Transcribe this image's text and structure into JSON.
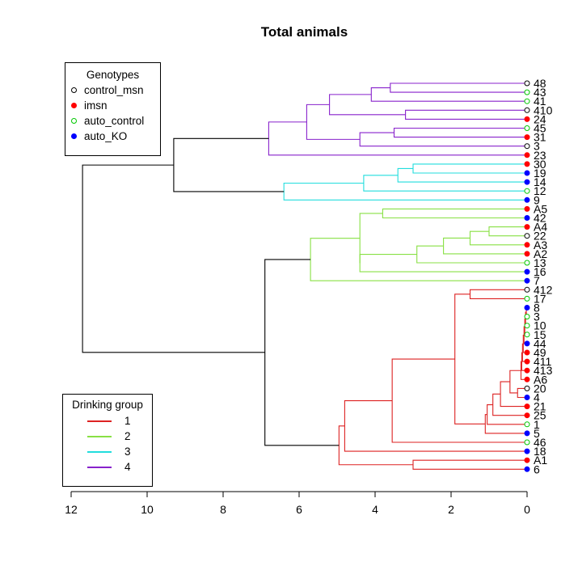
{
  "chart_data": {
    "type": "dendrogram",
    "title": "Total animals",
    "orientation": "horizontal",
    "xlim": [
      12,
      0
    ],
    "xticks": [
      12,
      10,
      8,
      6,
      4,
      2,
      0
    ],
    "xlabel": "",
    "ylabel": "",
    "colors": {
      "control_msn": "#000000",
      "imsn": "#ff0000",
      "auto_control": "#00c800",
      "auto_KO": "#0000ff",
      "group1": "#dd2222",
      "group2": "#88e044",
      "group3": "#22dddd",
      "group4": "#8822cc",
      "trunk": "#000000"
    },
    "leaves": [
      {
        "label": "48",
        "genotype": "control_msn"
      },
      {
        "label": "43",
        "genotype": "auto_control"
      },
      {
        "label": "41",
        "genotype": "auto_control"
      },
      {
        "label": "410",
        "genotype": "control_msn"
      },
      {
        "label": "24",
        "genotype": "imsn"
      },
      {
        "label": "45",
        "genotype": "auto_control"
      },
      {
        "label": "31",
        "genotype": "imsn"
      },
      {
        "label": "3",
        "genotype": "control_msn"
      },
      {
        "label": "23",
        "genotype": "imsn"
      },
      {
        "label": "30",
        "genotype": "imsn"
      },
      {
        "label": "19",
        "genotype": "auto_KO"
      },
      {
        "label": "14",
        "genotype": "auto_KO"
      },
      {
        "label": "12",
        "genotype": "auto_control"
      },
      {
        "label": "9",
        "genotype": "auto_KO"
      },
      {
        "label": "A5",
        "genotype": "imsn"
      },
      {
        "label": "42",
        "genotype": "auto_KO"
      },
      {
        "label": "A4",
        "genotype": "imsn"
      },
      {
        "label": "22",
        "genotype": "control_msn"
      },
      {
        "label": "A3",
        "genotype": "imsn"
      },
      {
        "label": "A2",
        "genotype": "imsn"
      },
      {
        "label": "13",
        "genotype": "auto_control"
      },
      {
        "label": "16",
        "genotype": "auto_KO"
      },
      {
        "label": "7",
        "genotype": "auto_KO"
      },
      {
        "label": "412",
        "genotype": "control_msn"
      },
      {
        "label": "17",
        "genotype": "auto_control"
      },
      {
        "label": "8",
        "genotype": "auto_KO"
      },
      {
        "label": "3",
        "genotype": "auto_control"
      },
      {
        "label": "10",
        "genotype": "auto_control"
      },
      {
        "label": "15",
        "genotype": "auto_control"
      },
      {
        "label": "44",
        "genotype": "auto_KO"
      },
      {
        "label": "49",
        "genotype": "imsn"
      },
      {
        "label": "411",
        "genotype": "imsn"
      },
      {
        "label": "413",
        "genotype": "imsn"
      },
      {
        "label": "A6",
        "genotype": "imsn"
      },
      {
        "label": "20",
        "genotype": "control_msn"
      },
      {
        "label": "4",
        "genotype": "auto_KO"
      },
      {
        "label": "21",
        "genotype": "imsn"
      },
      {
        "label": "25",
        "genotype": "imsn"
      },
      {
        "label": "1",
        "genotype": "auto_control"
      },
      {
        "label": "5",
        "genotype": "auto_KO"
      },
      {
        "label": "46",
        "genotype": "auto_control"
      },
      {
        "label": "18",
        "genotype": "auto_KO"
      },
      {
        "label": "A1",
        "genotype": "imsn"
      },
      {
        "label": "6",
        "genotype": "auto_KO"
      }
    ],
    "merges": [
      {
        "a": "L0",
        "b": "L1",
        "h": 3.6,
        "group": 4
      },
      {
        "a": "M0",
        "b": "L2",
        "h": 4.1,
        "group": 4
      },
      {
        "a": "L3",
        "b": "L4",
        "h": 3.2,
        "group": 4
      },
      {
        "a": "M1",
        "b": "M2",
        "h": 5.2,
        "group": 4
      },
      {
        "a": "L5",
        "b": "L6",
        "h": 3.5,
        "group": 4
      },
      {
        "a": "M4",
        "b": "L7",
        "h": 4.4,
        "group": 4
      },
      {
        "a": "M3",
        "b": "M5",
        "h": 5.8,
        "group": 4
      },
      {
        "a": "M6",
        "b": "L8",
        "h": 6.8,
        "group": 4
      },
      {
        "a": "L9",
        "b": "L10",
        "h": 3.0,
        "group": 3
      },
      {
        "a": "M8",
        "b": "L11",
        "h": 3.4,
        "group": 3
      },
      {
        "a": "M9",
        "b": "L12",
        "h": 4.3,
        "group": 3
      },
      {
        "a": "M10",
        "b": "L13",
        "h": 6.4,
        "group": 3
      },
      {
        "a": "M7",
        "b": "M11",
        "h": 9.3,
        "group": 0
      },
      {
        "a": "L14",
        "b": "L15",
        "h": 3.8,
        "group": 2
      },
      {
        "a": "L16",
        "b": "L17",
        "h": 1.0,
        "group": 2
      },
      {
        "a": "M14",
        "b": "L18",
        "h": 1.5,
        "group": 2
      },
      {
        "a": "M15",
        "b": "L19",
        "h": 2.2,
        "group": 2
      },
      {
        "a": "M16",
        "b": "L20",
        "h": 2.9,
        "group": 2
      },
      {
        "a": "M17",
        "b": "L21",
        "h": 4.4,
        "group": 2
      },
      {
        "a": "M13",
        "b": "M18",
        "h": 4.4,
        "group": 2
      },
      {
        "a": "M19",
        "b": "L22",
        "h": 5.7,
        "group": 2
      },
      {
        "a": "L23",
        "b": "L24",
        "h": 1.5,
        "group": 1
      },
      {
        "a": "L25",
        "b": "L26",
        "h": 0.02,
        "group": 1
      },
      {
        "a": "M22",
        "b": "L27",
        "h": 0.04,
        "group": 1
      },
      {
        "a": "M23",
        "b": "L28",
        "h": 0.06,
        "group": 1
      },
      {
        "a": "M24",
        "b": "L29",
        "h": 0.08,
        "group": 1
      },
      {
        "a": "M25",
        "b": "L30",
        "h": 0.1,
        "group": 1
      },
      {
        "a": "M26",
        "b": "L31",
        "h": 0.12,
        "group": 1
      },
      {
        "a": "M27",
        "b": "L32",
        "h": 0.14,
        "group": 1
      },
      {
        "a": "M28",
        "b": "L33",
        "h": 0.16,
        "group": 1
      },
      {
        "a": "L34",
        "b": "L35",
        "h": 0.25,
        "group": 1
      },
      {
        "a": "M29",
        "b": "M30",
        "h": 0.45,
        "group": 1
      },
      {
        "a": "M31",
        "b": "L36",
        "h": 0.7,
        "group": 1
      },
      {
        "a": "M32",
        "b": "L37",
        "h": 0.9,
        "group": 1
      },
      {
        "a": "M33",
        "b": "L38",
        "h": 1.05,
        "group": 1
      },
      {
        "a": "M34",
        "b": "L39",
        "h": 1.1,
        "group": 1
      },
      {
        "a": "M21",
        "b": "M35",
        "h": 1.9,
        "group": 1
      },
      {
        "a": "M36",
        "b": "L40",
        "h": 3.55,
        "group": 1
      },
      {
        "a": "M37",
        "b": "L41",
        "h": 4.8,
        "group": 1
      },
      {
        "a": "L42",
        "b": "L43",
        "h": 3.0,
        "group": 1
      },
      {
        "a": "M38",
        "b": "M39",
        "h": 4.95,
        "group": 1
      },
      {
        "a": "M20",
        "b": "M40",
        "h": 6.9,
        "group": 0
      },
      {
        "a": "M12",
        "b": "M41",
        "h": 11.7,
        "group": 0
      }
    ]
  },
  "legend_genotypes": {
    "title": "Genotypes",
    "items": [
      {
        "label": "control_msn",
        "key": "control_msn"
      },
      {
        "label": "imsn",
        "key": "imsn"
      },
      {
        "label": "auto_control",
        "key": "auto_control"
      },
      {
        "label": "auto_KO",
        "key": "auto_KO"
      }
    ]
  },
  "legend_groups": {
    "title": "Drinking group",
    "items": [
      {
        "label": "1",
        "key": "group1"
      },
      {
        "label": "2",
        "key": "group2"
      },
      {
        "label": "3",
        "key": "group3"
      },
      {
        "label": "4",
        "key": "group4"
      }
    ]
  }
}
